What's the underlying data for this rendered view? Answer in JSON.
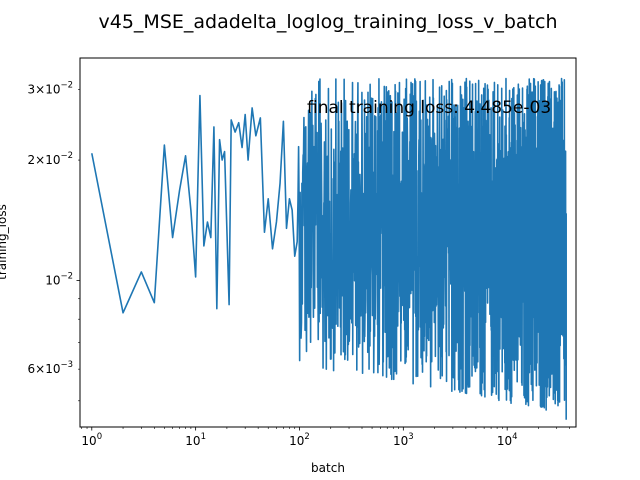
{
  "chart_data": {
    "type": "line",
    "title": "v45_MSE_adadelta_loglog_training_loss_v_batch",
    "xlabel": "batch",
    "ylabel": "training_loss",
    "xscale": "log",
    "yscale": "log",
    "xlim": [
      0.77,
      46000
    ],
    "ylim": [
      0.0043,
      0.036
    ],
    "grid": false,
    "annotation": "final training loss: 4.485e-03",
    "x_ticks": [
      {
        "value": 1,
        "base": "10",
        "exp": "0"
      },
      {
        "value": 10,
        "base": "10",
        "exp": "1"
      },
      {
        "value": 100,
        "base": "10",
        "exp": "2"
      },
      {
        "value": 1000,
        "base": "10",
        "exp": "3"
      },
      {
        "value": 10000,
        "base": "10",
        "exp": "4"
      }
    ],
    "y_ticks": [
      {
        "value": 0.006,
        "mant": "6",
        "base": "10",
        "exp": "−3"
      },
      {
        "value": 0.01,
        "mant": "",
        "base": "10",
        "exp": "−2"
      },
      {
        "value": 0.02,
        "mant": "2",
        "base": "10",
        "exp": "−2"
      },
      {
        "value": 0.03,
        "mant": "3",
        "base": "10",
        "exp": "−2"
      }
    ],
    "series": [
      {
        "color": "#1f77b4",
        "points": [
          [
            1,
            0.0208
          ],
          [
            2,
            0.0083
          ],
          [
            3,
            0.0105
          ],
          [
            4,
            0.0088
          ],
          [
            5,
            0.0218
          ],
          [
            6,
            0.0128
          ],
          [
            7,
            0.0168
          ],
          [
            8,
            0.0205
          ],
          [
            9,
            0.015
          ],
          [
            10,
            0.0102
          ],
          [
            11,
            0.029
          ],
          [
            12,
            0.0122
          ],
          [
            13,
            0.014
          ],
          [
            14,
            0.0128
          ],
          [
            15,
            0.0242
          ],
          [
            16,
            0.0085
          ],
          [
            17,
            0.0225
          ],
          [
            18,
            0.02
          ],
          [
            19,
            0.021
          ],
          [
            21,
            0.0087
          ],
          [
            22,
            0.0252
          ],
          [
            24,
            0.0235
          ],
          [
            26,
            0.0248
          ],
          [
            28,
            0.0215
          ],
          [
            30,
            0.026
          ],
          [
            32,
            0.02
          ],
          [
            35,
            0.027
          ],
          [
            38,
            0.023
          ],
          [
            42,
            0.0255
          ],
          [
            46,
            0.0132
          ],
          [
            50,
            0.016
          ],
          [
            55,
            0.012
          ],
          [
            60,
            0.014
          ],
          [
            65,
            0.0175
          ],
          [
            70,
            0.025
          ],
          [
            75,
            0.0135
          ],
          [
            80,
            0.016
          ],
          [
            85,
            0.015
          ],
          [
            90,
            0.0115
          ],
          [
            95,
            0.0125
          ]
        ],
        "band_from_batch": 95,
        "band_to_batch": 37000,
        "band_low": 0.0046,
        "band_high": 0.032,
        "final_value": 0.004485
      }
    ]
  }
}
